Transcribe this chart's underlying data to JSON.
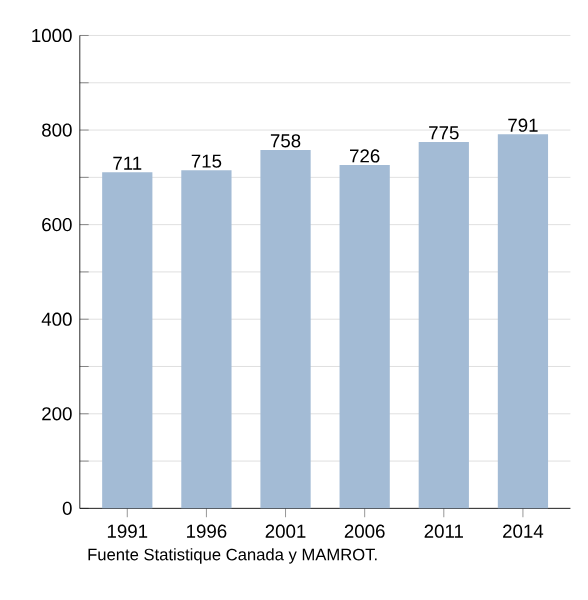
{
  "chart_data": {
    "type": "bar",
    "categories": [
      "1991",
      "1996",
      "2001",
      "2006",
      "2011",
      "2014"
    ],
    "values": [
      711,
      715,
      758,
      726,
      775,
      791
    ],
    "color": "#a3bbd5",
    "data_labels": true,
    "grid": "y",
    "ylim": [
      0,
      1000
    ],
    "yticks": [
      0,
      {
        "value": 100,
        "label": null
      },
      200,
      {
        "value": 300,
        "label": null
      },
      400,
      {
        "value": 500,
        "label": null
      },
      600,
      {
        "value": 700,
        "label": null
      },
      800,
      {
        "value": 900,
        "label": null
      },
      1000
    ],
    "annotations": [
      "Fuente Statistique Canada y MAMROT."
    ]
  }
}
